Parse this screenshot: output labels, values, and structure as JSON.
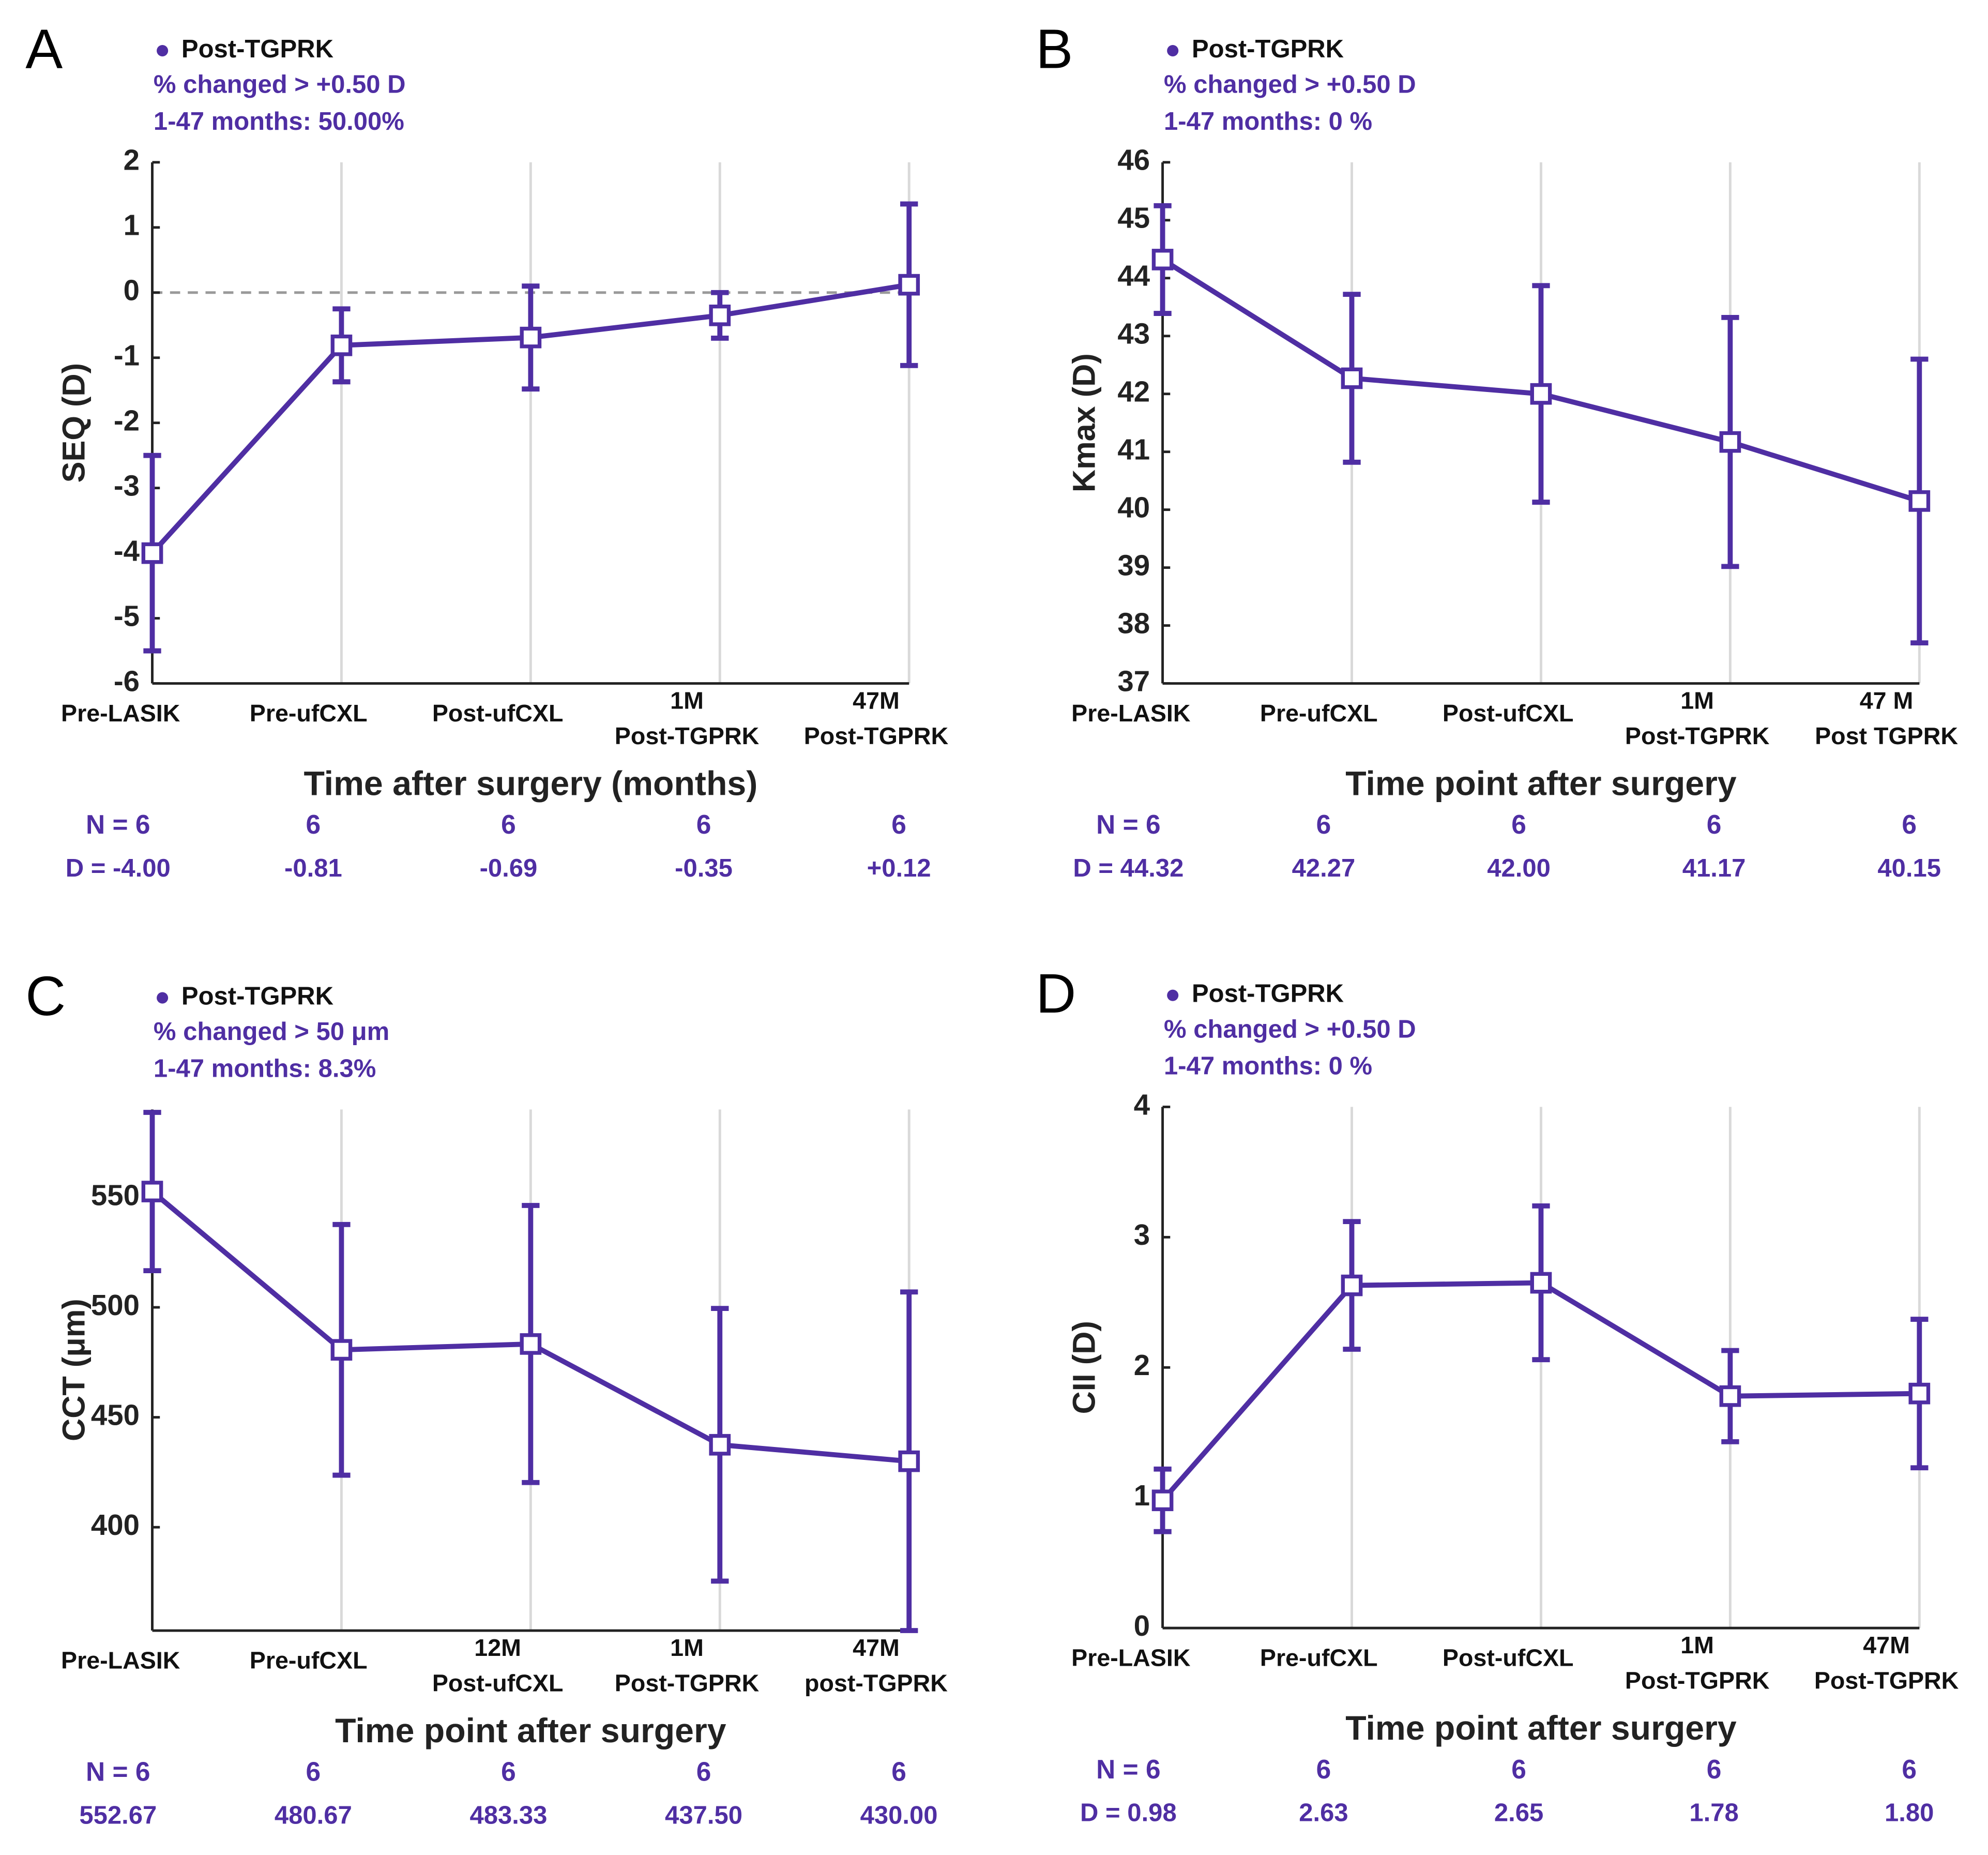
{
  "chart_data": [
    {
      "type": "line",
      "panel_label": "A",
      "annotations": [
        "% changed > +0.50 D",
        "1-47 months: 50.00%"
      ],
      "ylabel": "SEQ (D)",
      "xlabel": "Time after surgery (months)",
      "categories": [
        "Pre-LASIK",
        "Pre-ufCXL",
        "Post-ufCXL",
        "1M\nPost-TGPRK",
        "47M\nPost-TGPRK"
      ],
      "n_row": [
        "N = 6",
        "6",
        "6",
        "6",
        "6"
      ],
      "series": [
        {
          "name": "Post-TGPRK",
          "color": "#4f2ea3",
          "values": [
            -4.0,
            -0.81,
            -0.69,
            -0.35,
            0.12
          ],
          "errors": [
            1.5,
            0.56,
            0.79,
            0.35,
            1.24
          ],
          "value_labels": [
            "D = -4.00",
            "-0.81",
            "-0.69",
            "-0.35",
            "+0.12"
          ]
        }
      ],
      "ylim": [
        -6,
        2
      ],
      "yticks": [
        -6,
        -5,
        -4,
        -3,
        -2,
        -1,
        0,
        1,
        2
      ],
      "reference_line": 0
    },
    {
      "type": "line",
      "panel_label": "B",
      "annotations": [
        "% changed > +0.50 D",
        "1-47 months: 0 %"
      ],
      "ylabel": "Kmax (D)",
      "xlabel": "Time point after surgery",
      "categories": [
        "Pre-LASIK",
        "Pre-ufCXL",
        "Post-ufCXL",
        "1M\nPost-TGPRK",
        "47 M\nPost TGPRK"
      ],
      "n_row": [
        "N = 6",
        "6",
        "6",
        "6",
        "6"
      ],
      "series": [
        {
          "name": "Post-TGPRK",
          "color": "#4f2ea3",
          "values": [
            44.32,
            42.27,
            42.0,
            41.17,
            40.15
          ],
          "errors": [
            0.93,
            1.45,
            1.87,
            2.15,
            2.45
          ],
          "value_labels": [
            "D = 44.32",
            "42.27",
            "42.00",
            "41.17",
            "40.15"
          ]
        }
      ],
      "ylim": [
        37,
        46
      ],
      "yticks": [
        37,
        38,
        39,
        40,
        41,
        42,
        43,
        44,
        45,
        46
      ]
    },
    {
      "type": "line",
      "panel_label": "C",
      "annotations": [
        "% changed > 50 μm",
        "1-47 months: 8.3%"
      ],
      "ylabel": "CCT (μm)",
      "xlabel": "Time point after surgery",
      "categories": [
        "Pre-LASIK",
        "Pre-ufCXL",
        "12M\nPost-ufCXL",
        "1M\nPost-TGPRK",
        "47M\npost-TGPRK"
      ],
      "n_row": [
        "N = 6",
        "6",
        "6",
        "6",
        "6"
      ],
      "series": [
        {
          "name": "Post-TGPRK",
          "color": "#4f2ea3",
          "values": [
            552.67,
            480.67,
            483.33,
            437.5,
            430.0
          ],
          "errors": [
            36,
            57,
            63,
            62,
            77
          ],
          "value_labels": [
            "552.67",
            "480.67",
            "483.33",
            "437.50",
            "430.00"
          ]
        }
      ],
      "ylim": [
        353,
        590
      ],
      "yticks": [
        400,
        450,
        500,
        550
      ]
    },
    {
      "type": "line",
      "panel_label": "D",
      "annotations": [
        "% changed > +0.50 D",
        "1-47 months: 0 %"
      ],
      "ylabel": "CII (D)",
      "xlabel": "Time point after surgery",
      "categories": [
        "Pre-LASIK",
        "Pre-ufCXL",
        "Post-ufCXL",
        "1M\nPost-TGPRK",
        "47M\nPost-TGPRK"
      ],
      "n_row": [
        "N = 6",
        "6",
        "6",
        "6",
        "6"
      ],
      "series": [
        {
          "name": "Post-TGPRK",
          "color": "#4f2ea3",
          "values": [
            0.98,
            2.63,
            2.65,
            1.78,
            1.8
          ],
          "errors": [
            0.24,
            0.49,
            0.59,
            0.35,
            0.57
          ],
          "value_labels": [
            "D = 0.98",
            "2.63",
            "2.65",
            "1.78",
            "1.80"
          ]
        }
      ],
      "ylim": [
        0,
        4
      ],
      "yticks": [
        0,
        1,
        2,
        3,
        4
      ]
    }
  ]
}
